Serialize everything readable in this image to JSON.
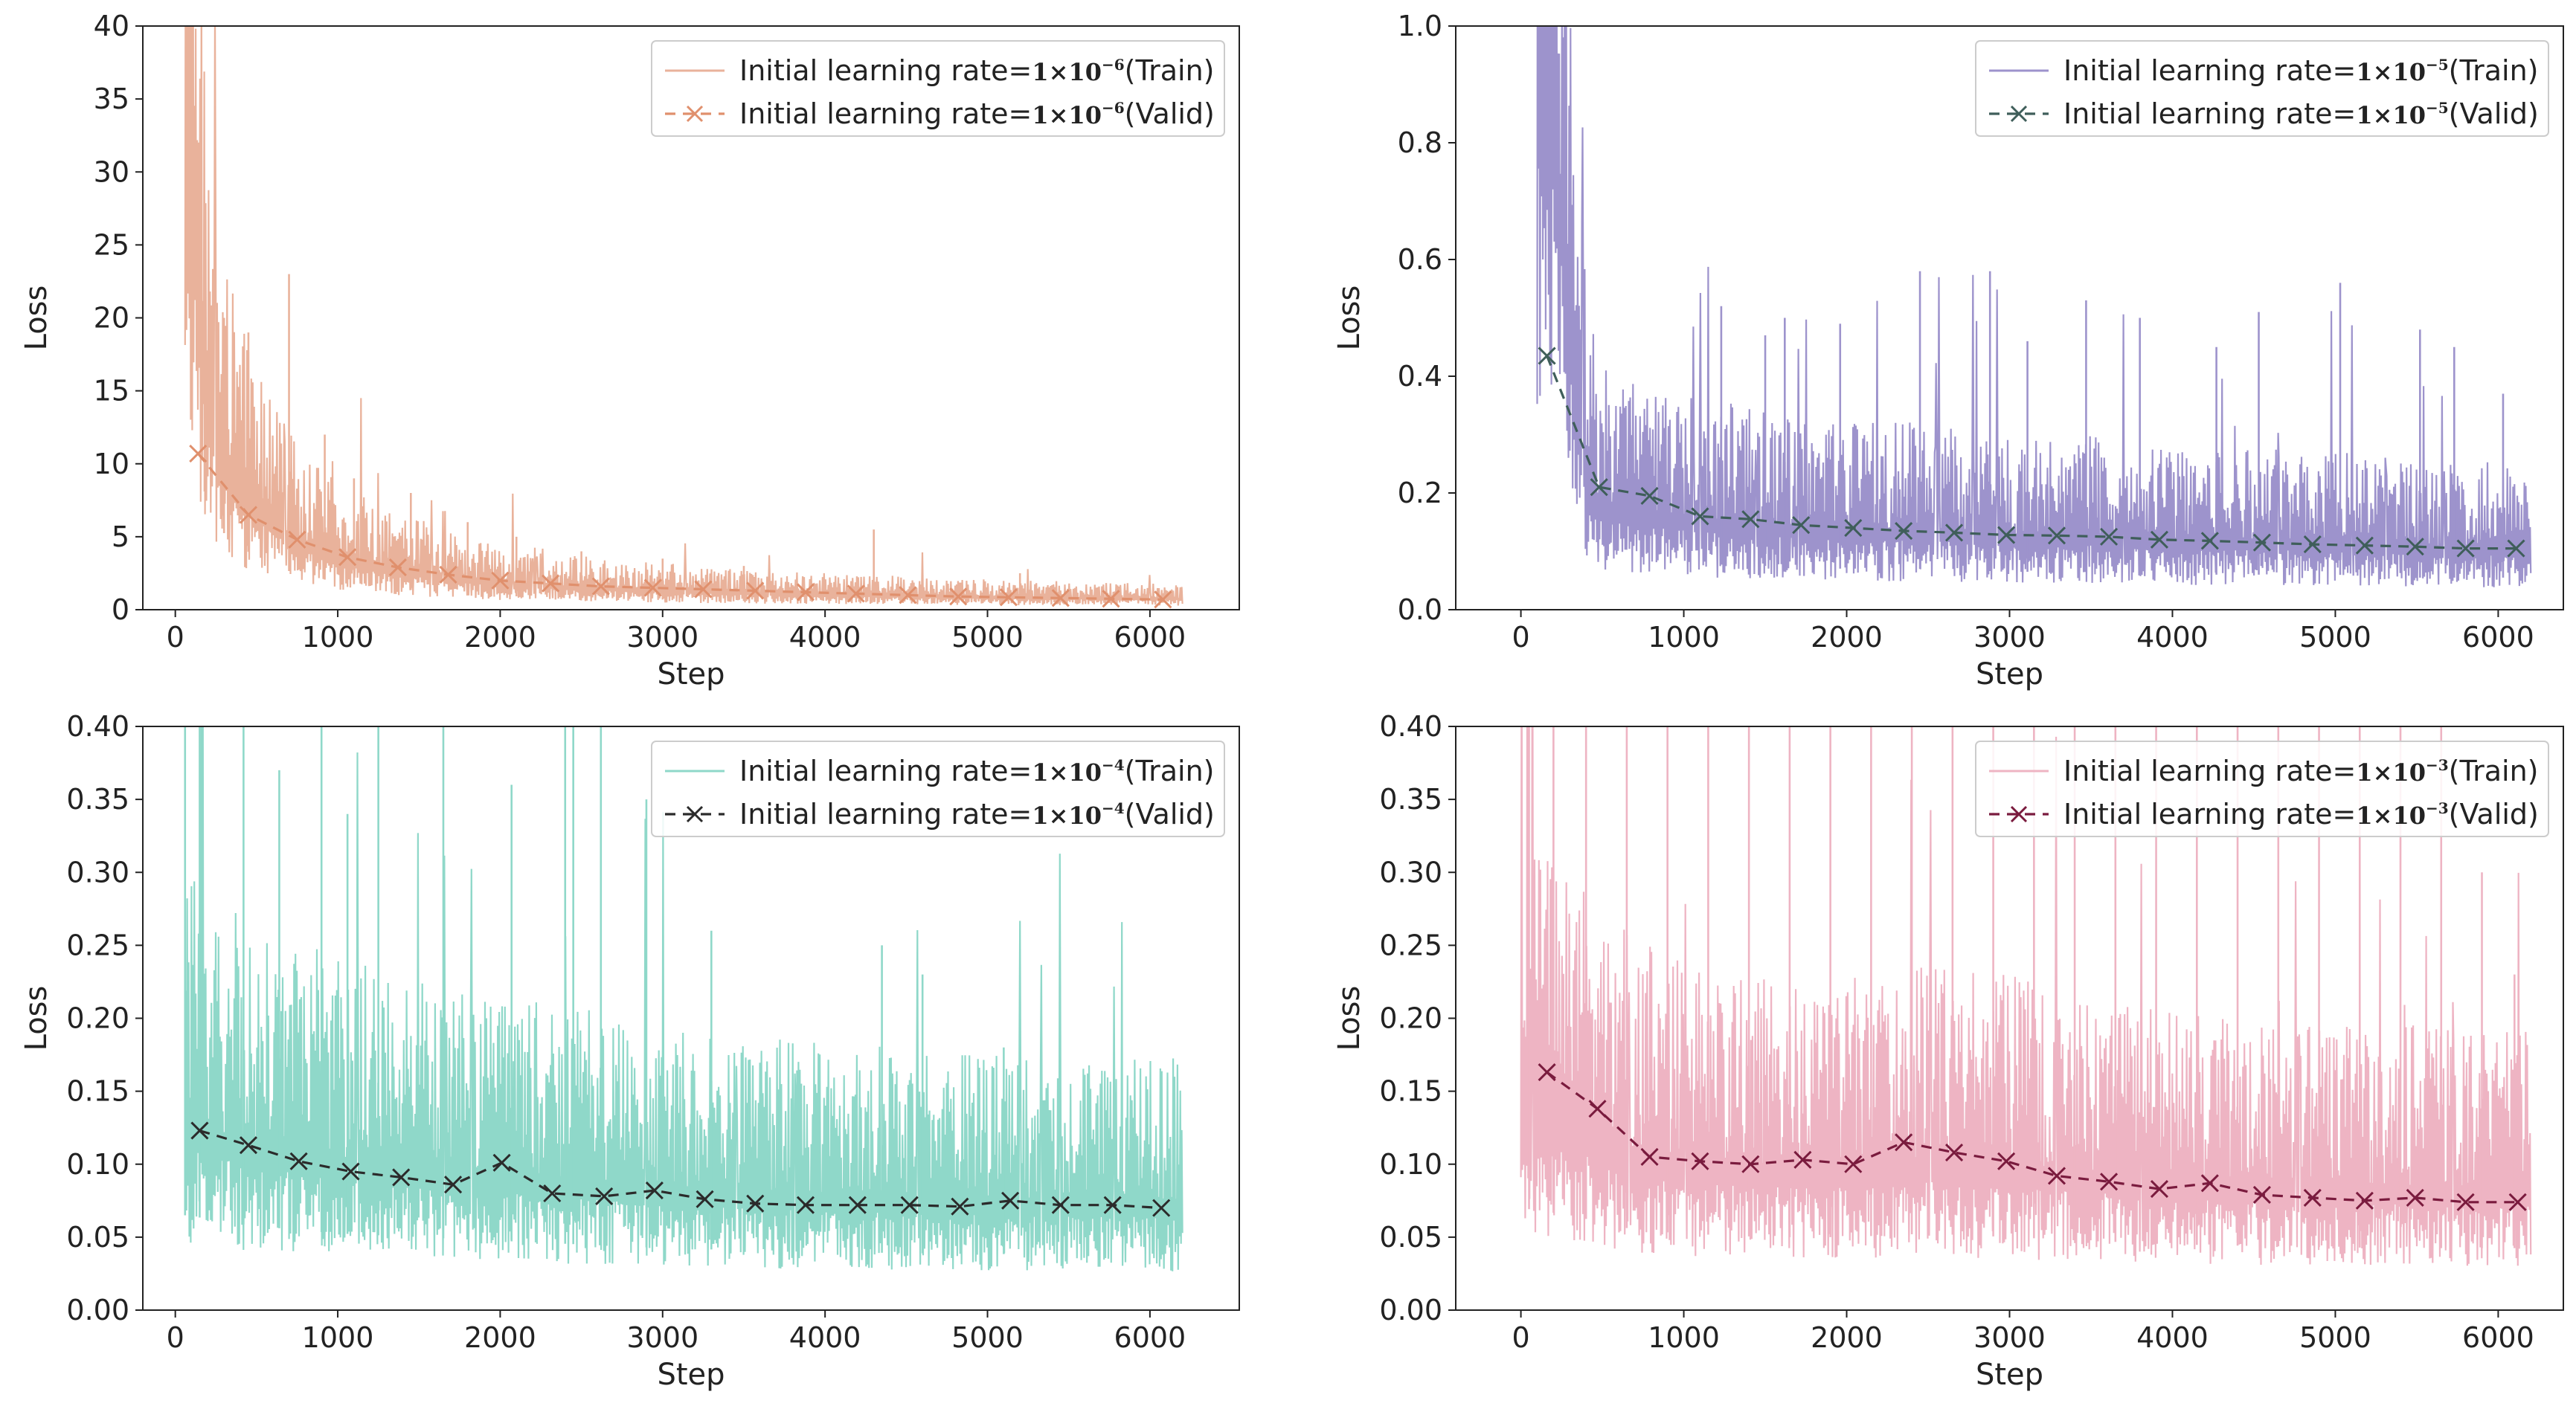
{
  "chart_data": [
    {
      "type": "line",
      "panel": "top-left",
      "xlabel": "Step",
      "ylabel": "Loss",
      "xlim": [
        -200,
        6550
      ],
      "ylim": [
        0,
        40
      ],
      "xticks": [
        0,
        1000,
        2000,
        3000,
        4000,
        5000,
        6000
      ],
      "xtick_labels": [
        "0",
        "1000",
        "2000",
        "3000",
        "4000",
        "5000",
        "6000"
      ],
      "yticks": [
        0,
        5,
        10,
        15,
        20,
        25,
        30,
        35,
        40
      ],
      "ytick_labels": [
        "0",
        "5",
        "10",
        "15",
        "20",
        "25",
        "30",
        "35",
        "40"
      ],
      "legend_position": "top-right",
      "series": [
        {
          "name": "Train",
          "legend_prefix": "Initial learning rate=",
          "legend_math": "1×10",
          "legend_exp": "−6",
          "legend_suffix": "(Train)",
          "color": "#e9b29b",
          "style": "solid",
          "x": [
            60,
            100,
            130,
            170,
            220,
            300,
            400,
            550,
            700,
            900,
            1100,
            1400,
            1700,
            2000,
            2500,
            3000,
            3500,
            4000,
            4500,
            5000,
            5500,
            6000,
            6200
          ],
          "values": [
            40,
            33,
            24,
            17,
            13,
            10.5,
            8.5,
            6.8,
            5.3,
            4.2,
            3.5,
            2.8,
            2.3,
            1.9,
            1.6,
            1.4,
            1.2,
            1.1,
            1.0,
            0.9,
            0.85,
            0.8,
            0.8
          ],
          "spikes": [
            [
              180,
              23
            ],
            [
              300,
              20
            ],
            [
              450,
              19
            ],
            [
              700,
              23
            ],
            [
              920,
              12
            ],
            [
              1100,
              9
            ],
            [
              1450,
              8
            ],
            [
              1800,
              6
            ],
            [
              2100,
              5
            ],
            [
              2500,
              4
            ],
            [
              3000,
              3.5
            ],
            [
              3500,
              3
            ],
            [
              4300,
              5.5
            ],
            [
              5200,
              2.5
            ]
          ]
        },
        {
          "name": "Valid",
          "legend_prefix": "Initial learning rate=",
          "legend_math": "1×10",
          "legend_exp": "−6",
          "legend_suffix": "(Valid)",
          "color": "#e0906d",
          "style": "dashed-x",
          "x": [
            140,
            450,
            750,
            1060,
            1370,
            1680,
            2000,
            2310,
            2620,
            2940,
            3250,
            3570,
            3880,
            4190,
            4510,
            4820,
            5130,
            5450,
            5760,
            6080
          ],
          "values": [
            10.7,
            6.5,
            4.8,
            3.6,
            2.9,
            2.4,
            2.0,
            1.8,
            1.6,
            1.5,
            1.4,
            1.3,
            1.2,
            1.1,
            1.0,
            0.9,
            0.85,
            0.8,
            0.75,
            0.7
          ]
        }
      ]
    },
    {
      "type": "line",
      "panel": "top-right",
      "xlabel": "Step",
      "ylabel": "Loss",
      "xlim": [
        -400,
        6400
      ],
      "ylim": [
        0,
        1.0
      ],
      "xticks": [
        0,
        1000,
        2000,
        3000,
        4000,
        5000,
        6000
      ],
      "xtick_labels": [
        "0",
        "1000",
        "2000",
        "3000",
        "4000",
        "5000",
        "6000"
      ],
      "yticks": [
        0.0,
        0.2,
        0.4,
        0.6,
        0.8,
        1.0
      ],
      "ytick_labels": [
        "0.0",
        "0.2",
        "0.4",
        "0.6",
        "0.8",
        "1.0"
      ],
      "legend_position": "top-right",
      "series": [
        {
          "name": "Train",
          "legend_prefix": "Initial learning rate=",
          "legend_math": "1×10",
          "legend_exp": "−5",
          "legend_suffix": "(Train)",
          "color": "#9d93cc",
          "style": "solid",
          "x": [
            100,
            150,
            200,
            250,
            300,
            350,
            400,
            450,
            500,
            700,
            1000,
            1500,
            2000,
            2500,
            3000,
            3500,
            4000,
            4500,
            5000,
            5500,
            6000,
            6200
          ],
          "values": [
            1.0,
            0.95,
            0.85,
            0.7,
            0.5,
            0.35,
            0.25,
            0.2,
            0.18,
            0.17,
            0.16,
            0.15,
            0.14,
            0.14,
            0.13,
            0.13,
            0.12,
            0.12,
            0.12,
            0.11,
            0.11,
            0.11
          ],
          "spikes": [
            [
              1230,
              0.52
            ],
            [
              1500,
              0.47
            ],
            [
              1620,
              0.5
            ],
            [
              1960,
              0.49
            ],
            [
              2450,
              0.58
            ],
            [
              2880,
              0.58
            ],
            [
              3110,
              0.46
            ],
            [
              3470,
              0.53
            ],
            [
              3800,
              0.5
            ],
            [
              4270,
              0.45
            ],
            [
              4530,
              0.51
            ],
            [
              5030,
              0.56
            ],
            [
              5520,
              0.48
            ],
            [
              5730,
              0.45
            ],
            [
              6030,
              0.37
            ]
          ]
        },
        {
          "name": "Valid",
          "legend_prefix": "Initial learning rate=",
          "legend_math": "1×10",
          "legend_exp": "−5",
          "legend_suffix": "(Valid)",
          "color": "#3f5e5a",
          "style": "dashed-x",
          "x": [
            160,
            480,
            790,
            1100,
            1410,
            1720,
            2040,
            2350,
            2660,
            2980,
            3290,
            3610,
            3920,
            4230,
            4550,
            4860,
            5180,
            5490,
            5800,
            6110
          ],
          "values": [
            0.435,
            0.21,
            0.195,
            0.16,
            0.155,
            0.145,
            0.14,
            0.135,
            0.132,
            0.128,
            0.127,
            0.125,
            0.12,
            0.118,
            0.115,
            0.112,
            0.11,
            0.108,
            0.105,
            0.105
          ]
        }
      ]
    },
    {
      "type": "line",
      "panel": "bottom-left",
      "xlabel": "Step",
      "ylabel": "Loss",
      "xlim": [
        -200,
        6550
      ],
      "ylim": [
        0,
        0.4
      ],
      "xticks": [
        0,
        1000,
        2000,
        3000,
        4000,
        5000,
        6000
      ],
      "xtick_labels": [
        "0",
        "1000",
        "2000",
        "3000",
        "4000",
        "5000",
        "6000"
      ],
      "yticks": [
        0.0,
        0.05,
        0.1,
        0.15,
        0.2,
        0.25,
        0.3,
        0.35,
        0.4
      ],
      "ytick_labels": [
        "0.00",
        "0.05",
        "0.10",
        "0.15",
        "0.20",
        "0.25",
        "0.30",
        "0.35",
        "0.40"
      ],
      "legend_position": "top-right",
      "series": [
        {
          "name": "Train",
          "legend_prefix": "Initial learning rate=",
          "legend_math": "1×10",
          "legend_exp": "−4",
          "legend_suffix": "(Train)",
          "color": "#8fd8c9",
          "style": "solid",
          "x": [
            60,
            500,
            1000,
            1500,
            2000,
            2500,
            3000,
            3500,
            4000,
            4500,
            5000,
            5500,
            6000,
            6200
          ],
          "values": [
            0.13,
            0.115,
            0.105,
            0.1,
            0.095,
            0.09,
            0.085,
            0.082,
            0.08,
            0.078,
            0.077,
            0.076,
            0.075,
            0.075
          ],
          "spikes": [
            [
              60,
              0.4
            ],
            [
              150,
              0.4
            ],
            [
              420,
              0.4
            ],
            [
              640,
              0.37
            ],
            [
              900,
              0.4
            ],
            [
              1060,
              0.34
            ],
            [
              1250,
              0.4
            ],
            [
              1650,
              0.4
            ],
            [
              2070,
              0.36
            ],
            [
              2400,
              0.4
            ],
            [
              2450,
              0.4
            ],
            [
              2620,
              0.4
            ],
            [
              2900,
              0.35
            ],
            [
              3300,
              0.26
            ],
            [
              4350,
              0.25
            ],
            [
              4600,
              0.23
            ],
            [
              5100,
              0.18
            ]
          ]
        },
        {
          "name": "Valid",
          "legend_prefix": "Initial learning rate=",
          "legend_math": "1×10",
          "legend_exp": "−4",
          "legend_suffix": "(Valid)",
          "color": "#2b2b2b",
          "style": "dashed-x",
          "x": [
            150,
            450,
            760,
            1080,
            1390,
            1710,
            2010,
            2320,
            2640,
            2950,
            3260,
            3570,
            3880,
            4200,
            4520,
            4830,
            5140,
            5450,
            5770,
            6070
          ],
          "values": [
            0.123,
            0.113,
            0.102,
            0.095,
            0.091,
            0.086,
            0.101,
            0.08,
            0.078,
            0.082,
            0.076,
            0.073,
            0.072,
            0.072,
            0.072,
            0.071,
            0.075,
            0.072,
            0.072,
            0.07
          ]
        }
      ]
    },
    {
      "type": "line",
      "panel": "bottom-right",
      "xlabel": "Step",
      "ylabel": "Loss",
      "xlim": [
        -400,
        6400
      ],
      "ylim": [
        0,
        0.4
      ],
      "xticks": [
        0,
        1000,
        2000,
        3000,
        4000,
        5000,
        6000
      ],
      "xtick_labels": [
        "0",
        "1000",
        "2000",
        "3000",
        "4000",
        "5000",
        "6000"
      ],
      "yticks": [
        0.0,
        0.05,
        0.1,
        0.15,
        0.2,
        0.25,
        0.3,
        0.35,
        0.4
      ],
      "ytick_labels": [
        "0.00",
        "0.05",
        "0.10",
        "0.15",
        "0.20",
        "0.25",
        "0.30",
        "0.35",
        "0.40"
      ],
      "legend_position": "top-right",
      "series": [
        {
          "name": "Train",
          "legend_prefix": "Initial learning rate=",
          "legend_math": "1×10",
          "legend_exp": "−3",
          "legend_suffix": "(Train)",
          "color": "#eeb4c3",
          "style": "solid",
          "x": [
            0,
            300,
            700,
            1000,
            1500,
            2000,
            2500,
            3000,
            3500,
            4000,
            4500,
            5000,
            5500,
            6000,
            6200
          ],
          "values": [
            0.14,
            0.13,
            0.11,
            0.105,
            0.1,
            0.1,
            0.105,
            0.1,
            0.095,
            0.09,
            0.088,
            0.086,
            0.085,
            0.085,
            0.085
          ],
          "spikes": [
            [
              50,
              0.4
            ],
            [
              200,
              0.4
            ],
            [
              400,
              0.4
            ],
            [
              650,
              0.4
            ],
            [
              900,
              0.4
            ],
            [
              1150,
              0.4
            ],
            [
              1400,
              0.4
            ],
            [
              1650,
              0.4
            ],
            [
              1900,
              0.4
            ],
            [
              2150,
              0.4
            ],
            [
              2400,
              0.4
            ],
            [
              2650,
              0.4
            ],
            [
              2900,
              0.4
            ],
            [
              3150,
              0.4
            ],
            [
              3400,
              0.4
            ],
            [
              3650,
              0.4
            ],
            [
              3900,
              0.4
            ],
            [
              4150,
              0.4
            ],
            [
              4400,
              0.4
            ],
            [
              4650,
              0.4
            ],
            [
              4900,
              0.4
            ],
            [
              5150,
              0.4
            ],
            [
              5400,
              0.4
            ],
            [
              5650,
              0.4
            ],
            [
              5900,
              0.3
            ],
            [
              6100,
              0.23
            ]
          ]
        },
        {
          "name": "Valid",
          "legend_prefix": "Initial learning rate=",
          "legend_math": "1×10",
          "legend_exp": "−3",
          "legend_suffix": "(Valid)",
          "color": "#7a1b3e",
          "style": "dashed-x",
          "x": [
            160,
            470,
            790,
            1100,
            1410,
            1730,
            2040,
            2350,
            2660,
            2980,
            3290,
            3610,
            3920,
            4230,
            4550,
            4860,
            5180,
            5490,
            5800,
            6120
          ],
          "values": [
            0.163,
            0.138,
            0.105,
            0.102,
            0.1,
            0.103,
            0.1,
            0.115,
            0.108,
            0.102,
            0.092,
            0.088,
            0.083,
            0.087,
            0.079,
            0.077,
            0.075,
            0.077,
            0.074,
            0.074
          ]
        }
      ]
    }
  ]
}
